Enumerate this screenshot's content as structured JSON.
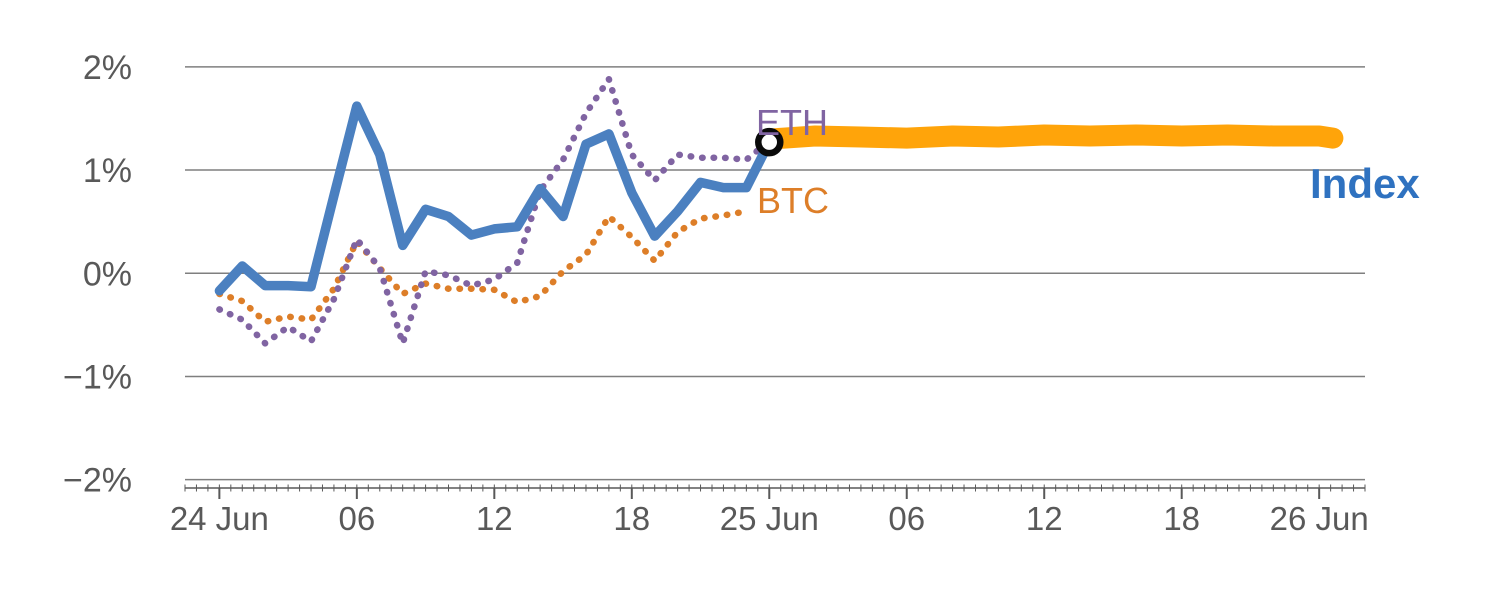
{
  "chart_data": {
    "type": "line",
    "title": "",
    "xlabel": "",
    "ylabel": "",
    "grid": true,
    "legend_position": "inline-labels",
    "x_unit": "hours since 24 Jun 00:00",
    "xlim": [
      -1.5,
      50
    ],
    "ylim": [
      -2.1,
      2.26
    ],
    "x_ticks": [
      {
        "x": 0,
        "label": "24 Jun"
      },
      {
        "x": 6,
        "label": "06"
      },
      {
        "x": 12,
        "label": "12"
      },
      {
        "x": 18,
        "label": "18"
      },
      {
        "x": 24,
        "label": "25 Jun"
      },
      {
        "x": 30,
        "label": "06"
      },
      {
        "x": 36,
        "label": "12"
      },
      {
        "x": 42,
        "label": "18"
      },
      {
        "x": 48,
        "label": "26 Jun"
      }
    ],
    "y_ticks": [
      {
        "y": 2,
        "label": "2%"
      },
      {
        "y": 1,
        "label": "1%"
      },
      {
        "y": 0,
        "label": "0%"
      },
      {
        "y": -1,
        "label": "−1%"
      },
      {
        "y": -2,
        "label": "−2%"
      }
    ],
    "series": [
      {
        "name": "forward-band",
        "style": "solid",
        "width": 21,
        "color_key": "band",
        "x": [
          24,
          26,
          28,
          30,
          32,
          34,
          36,
          38,
          40,
          42,
          44,
          46,
          48,
          48.6
        ],
        "y": [
          1.3,
          1.33,
          1.32,
          1.31,
          1.33,
          1.32,
          1.34,
          1.33,
          1.34,
          1.33,
          1.34,
          1.33,
          1.33,
          1.31
        ]
      },
      {
        "name": "BTC",
        "style": "dotted",
        "width": 6.5,
        "color_key": "btc",
        "x": [
          0,
          1,
          2,
          3,
          4,
          5,
          6,
          7,
          8,
          9,
          10,
          11,
          12,
          13,
          14,
          15,
          16,
          17,
          18,
          19,
          20,
          21,
          22,
          23
        ],
        "y": [
          -0.2,
          -0.27,
          -0.47,
          -0.42,
          -0.45,
          -0.15,
          0.31,
          0.05,
          -0.2,
          -0.1,
          -0.15,
          -0.15,
          -0.16,
          -0.28,
          -0.22,
          0.02,
          0.18,
          0.55,
          0.35,
          0.12,
          0.4,
          0.53,
          0.56,
          0.6
        ]
      },
      {
        "name": "ETH",
        "style": "dotted",
        "width": 6.5,
        "color_key": "eth",
        "x": [
          0,
          1,
          2,
          3,
          4,
          5,
          6,
          7,
          8,
          9,
          10,
          11,
          12,
          13,
          14,
          15,
          16,
          17,
          18,
          19,
          20,
          21,
          22,
          23,
          24
        ],
        "y": [
          -0.35,
          -0.45,
          -0.68,
          -0.52,
          -0.66,
          -0.25,
          0.33,
          0.05,
          -0.68,
          0.02,
          -0.02,
          -0.12,
          -0.06,
          0.1,
          0.8,
          1.1,
          1.55,
          1.88,
          1.15,
          0.9,
          1.15,
          1.12,
          1.12,
          1.1,
          1.28
        ]
      },
      {
        "name": "Index",
        "style": "solid",
        "width": 9.5,
        "color_key": "index",
        "x": [
          0,
          1,
          2,
          3,
          4,
          5,
          6,
          7,
          8,
          9,
          10,
          11,
          12,
          13,
          14,
          15,
          16,
          17,
          18,
          19,
          20,
          21,
          22,
          23,
          24
        ],
        "y": [
          -0.17,
          0.07,
          -0.12,
          -0.12,
          -0.13,
          0.75,
          1.62,
          1.15,
          0.27,
          0.62,
          0.55,
          0.37,
          0.43,
          0.45,
          0.82,
          0.55,
          1.25,
          1.35,
          0.78,
          0.36,
          0.6,
          0.88,
          0.83,
          0.83,
          1.27
        ]
      }
    ],
    "marker": {
      "x": 24,
      "y": 1.27,
      "radius": 11,
      "stroke_width": 6.5
    }
  },
  "labels": {
    "eth": "ETH",
    "btc": "BTC",
    "index": "Index"
  },
  "colors": {
    "index": "#4b80c0",
    "index_label": "#2f72c0",
    "eth": "#8064a2",
    "btc": "#dd7e28",
    "band": "#ffa40a",
    "grid": "#7f7f7f",
    "axis": "#595959",
    "tick_text": "#595959",
    "marker_stroke": "#0a0a0a",
    "marker_fill": "#ffffff"
  }
}
